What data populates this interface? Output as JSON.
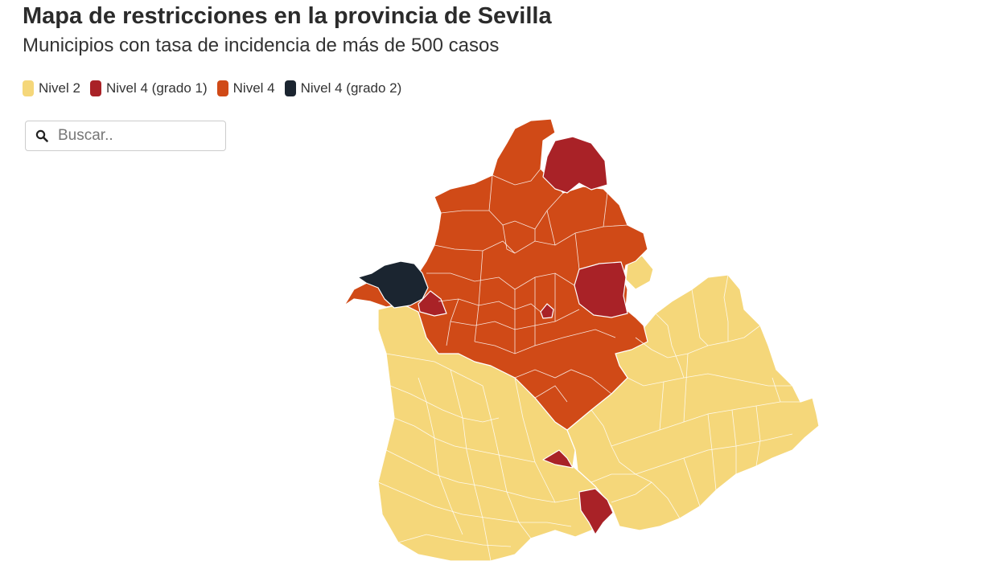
{
  "header": {
    "title": "Mapa de restricciones en la provincia de Sevilla",
    "subtitle": "Municipios con tasa de incidencia de más de 500 casos"
  },
  "legend": [
    {
      "label": "Nivel 2",
      "color": "#f5d77a"
    },
    {
      "label": "Nivel 4 (grado 1)",
      "color": "#a92227"
    },
    {
      "label": "Nivel 4",
      "color": "#d04a17"
    },
    {
      "label": "Nivel 4 (grado 2)",
      "color": "#1b2530"
    }
  ],
  "search": {
    "placeholder": "Buscar..",
    "value": "",
    "icon": "search-icon"
  },
  "colors": {
    "nivel2": "#f5d77a",
    "nivel4_grado1": "#a92227",
    "nivel4": "#d04a17",
    "nivel4_grado2": "#1b2530",
    "border": "#ffffff"
  }
}
